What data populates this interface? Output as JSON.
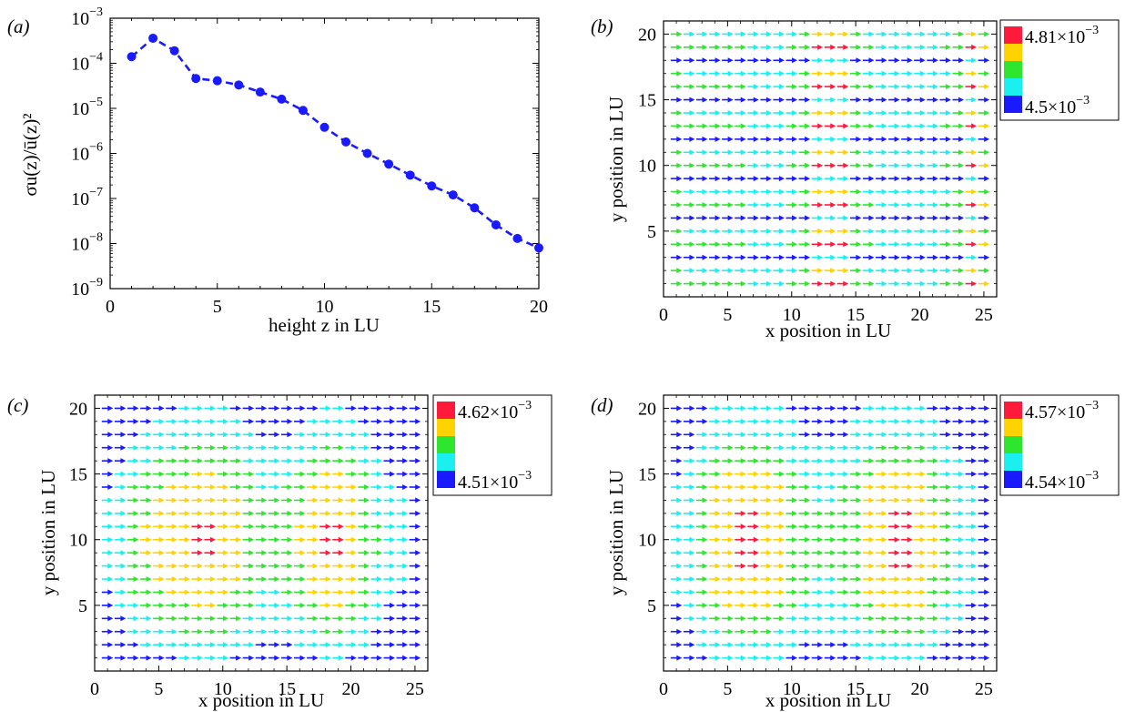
{
  "chart_data": [
    {
      "panel": "(a)",
      "type": "line",
      "xlabel": "height z in LU",
      "ylabel": "σu(z)/ū(z)²",
      "xlim": [
        0,
        20
      ],
      "ylim_log10": [
        -9,
        -3
      ],
      "yscale": "log",
      "xticks": [
        0,
        5,
        10,
        15,
        20
      ],
      "yticks": [
        "10−9",
        "10−8",
        "10−7",
        "10−6",
        "10−5",
        "10−4",
        "10−3"
      ],
      "line_style": "dashed",
      "marker": "circle",
      "color": "#1a1aff",
      "x": [
        1,
        2,
        3,
        4,
        5,
        6,
        7,
        8,
        9,
        10,
        11,
        12,
        13,
        14,
        15,
        16,
        17,
        18,
        19,
        20
      ],
      "y": [
        0.00014,
        0.00036,
        0.00019,
        4.6e-05,
        4.1e-05,
        3.3e-05,
        2.3e-05,
        1.6e-05,
        9e-06,
        3.8e-06,
        1.8e-06,
        1e-06,
        5.8e-07,
        3.3e-07,
        1.9e-07,
        1.2e-07,
        6.2e-08,
        2.6e-08,
        1.3e-08,
        8e-09
      ]
    },
    {
      "panel": "(b)",
      "type": "heatmap",
      "subtype": "vector-field",
      "xlabel": "x position in LU",
      "ylabel": "y position in LU",
      "xlim": [
        0,
        26
      ],
      "ylim": [
        0,
        21
      ],
      "xticks": [
        0,
        5,
        10,
        15,
        20,
        25
      ],
      "yticks": [
        5,
        10,
        15,
        20
      ],
      "grid": {
        "nx": 25,
        "ny": 20
      },
      "legend": {
        "max_label": "4.81×10",
        "max_exp": "−3",
        "min_label": "4.5×10",
        "min_exp": "−3",
        "placement": "right"
      },
      "colors": [
        "#ff1a3c",
        "#ffd200",
        "#2ee62e",
        "#1af0f0",
        "#1a1aff"
      ],
      "row_pattern": [
        0.85,
        0.6,
        0.2
      ],
      "col_pattern": [
        0.55,
        0.5,
        0.45,
        0.45,
        0.4,
        0.4,
        0.35,
        0.35,
        0.35,
        0.4,
        0.55,
        0.95,
        1.0,
        0.95,
        0.55,
        0.4,
        0.35,
        0.3,
        0.3,
        0.3,
        0.35,
        0.4,
        0.55,
        0.85,
        0.6
      ]
    },
    {
      "panel": "(c)",
      "type": "heatmap",
      "subtype": "vector-field",
      "xlabel": "x position in LU",
      "ylabel": "y position in LU",
      "xlim": [
        0,
        26
      ],
      "ylim": [
        0,
        21
      ],
      "xticks": [
        0,
        5,
        10,
        15,
        20,
        25
      ],
      "yticks": [
        5,
        10,
        15,
        20
      ],
      "grid": {
        "nx": 25,
        "ny": 20
      },
      "legend": {
        "max_label": "4.62×10",
        "max_exp": "−3",
        "min_label": "4.51×10",
        "min_exp": "−3",
        "placement": "right"
      },
      "colors": [
        "#ff1a3c",
        "#ffd200",
        "#2ee62e",
        "#1af0f0",
        "#1a1aff"
      ],
      "col_pattern": [
        0.3,
        0.4,
        0.55,
        0.65,
        0.7,
        0.75,
        0.8,
        0.85,
        0.85,
        0.8,
        0.7,
        0.6,
        0.5,
        0.5,
        0.55,
        0.65,
        0.75,
        0.85,
        0.85,
        0.75,
        0.6,
        0.45,
        0.35,
        0.3,
        0.25
      ],
      "row_pattern": [
        0.35,
        0.45,
        0.55,
        0.65,
        0.75,
        0.85,
        0.9,
        0.95,
        1.0,
        1.0,
        1.0,
        0.95,
        0.9,
        0.85,
        0.75,
        0.65,
        0.55,
        0.45,
        0.4,
        0.35
      ]
    },
    {
      "panel": "(d)",
      "type": "heatmap",
      "subtype": "vector-field",
      "xlabel": "x position in LU",
      "ylabel": "y position in LU",
      "xlim": [
        0,
        26
      ],
      "ylim": [
        0,
        21
      ],
      "xticks": [
        0,
        5,
        10,
        15,
        20,
        25
      ],
      "yticks": [
        5,
        10,
        15,
        20
      ],
      "grid": {
        "nx": 25,
        "ny": 20
      },
      "legend": {
        "max_label": "4.57×10",
        "max_exp": "−3",
        "min_label": "4.54×10",
        "min_exp": "−3",
        "placement": "right"
      },
      "colors": [
        "#ff1a3c",
        "#ffd200",
        "#2ee62e",
        "#1af0f0",
        "#1a1aff"
      ],
      "col_pattern": [
        0.3,
        0.4,
        0.55,
        0.7,
        0.8,
        0.85,
        0.85,
        0.8,
        0.7,
        0.6,
        0.5,
        0.45,
        0.45,
        0.5,
        0.6,
        0.7,
        0.8,
        0.85,
        0.85,
        0.8,
        0.65,
        0.5,
        0.4,
        0.3,
        0.25
      ],
      "row_pattern": [
        0.4,
        0.5,
        0.6,
        0.7,
        0.8,
        0.9,
        0.95,
        1.0,
        1.0,
        1.0,
        1.0,
        1.0,
        0.95,
        0.9,
        0.8,
        0.7,
        0.6,
        0.5,
        0.45,
        0.4
      ]
    }
  ]
}
